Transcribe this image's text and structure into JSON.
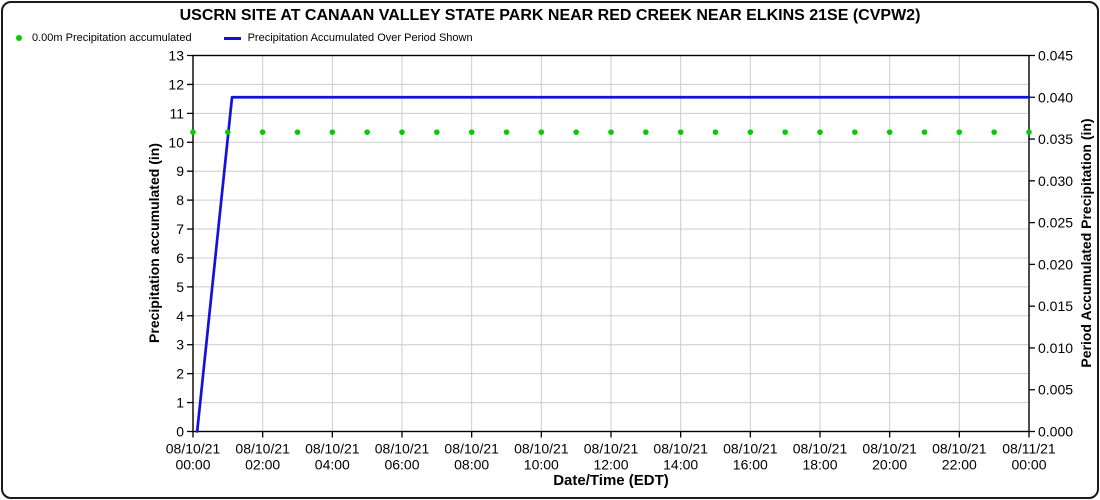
{
  "title": "USCRN SITE AT CANAAN VALLEY STATE PARK NEAR RED CREEK NEAR ELKINS 21SE (CVPW2)",
  "legend": [
    {
      "label": "0.00m Precipitation accumulated",
      "color": "#00CC00",
      "marker": "dot"
    },
    {
      "label": "Precipitation Accumulated Over Period Shown",
      "color": "#1212DC",
      "marker": "line"
    }
  ],
  "colors": {
    "accent_blue": "#1212DC",
    "accent_green": "#00CC00",
    "grid": "#CCCCCC",
    "axis": "#000000"
  },
  "chart_data": {
    "type": "line",
    "title": "USCRN SITE AT CANAAN VALLEY STATE PARK NEAR RED CREEK NEAR ELKINS 21SE (CVPW2)",
    "xlabel": "Date/Time (EDT)",
    "ylabel_left": "Precipitation accumulated (in)",
    "ylabel_right": "Period Accumulated Precipitation (in)",
    "x_range_hours": [
      0,
      24
    ],
    "x_major_tick_hours": 2,
    "grid": {
      "vertical_every_hours": 2,
      "horizontal_every_left_units": 1,
      "on": true
    },
    "y_left": {
      "min": 0,
      "max": 13,
      "step": 1,
      "decimals": 0
    },
    "y_right": {
      "min": 0,
      "max": 0.045,
      "step": 0.005,
      "decimals": 3
    },
    "x_tick_labels": [
      {
        "date": "08/10/21",
        "time": "00:00"
      },
      {
        "date": "08/10/21",
        "time": "02:00"
      },
      {
        "date": "08/10/21",
        "time": "04:00"
      },
      {
        "date": "08/10/21",
        "time": "06:00"
      },
      {
        "date": "08/10/21",
        "time": "08:00"
      },
      {
        "date": "08/10/21",
        "time": "10:00"
      },
      {
        "date": "08/10/21",
        "time": "12:00"
      },
      {
        "date": "08/10/21",
        "time": "14:00"
      },
      {
        "date": "08/10/21",
        "time": "16:00"
      },
      {
        "date": "08/10/21",
        "time": "18:00"
      },
      {
        "date": "08/10/21",
        "time": "20:00"
      },
      {
        "date": "08/10/21",
        "time": "22:00"
      },
      {
        "date": "08/11/21",
        "time": "00:00"
      }
    ],
    "series": [
      {
        "name": "0.00m Precipitation accumulated",
        "type": "scatter",
        "axis": "left",
        "color": "#00CC00",
        "t_hours": [
          0,
          1,
          2,
          3,
          4,
          5,
          6,
          7,
          8,
          9,
          10,
          11,
          12,
          13,
          14,
          15,
          16,
          17,
          18,
          19,
          20,
          21,
          22,
          23,
          24
        ],
        "value": 10.35
      },
      {
        "name": "Precipitation Accumulated Over Period Shown",
        "type": "line",
        "axis": "right",
        "color": "#1212DC",
        "points": [
          {
            "t": 0.12,
            "v": 0.0
          },
          {
            "t": 1.12,
            "v": 0.04
          },
          {
            "t": 24,
            "v": 0.04
          }
        ]
      }
    ]
  }
}
